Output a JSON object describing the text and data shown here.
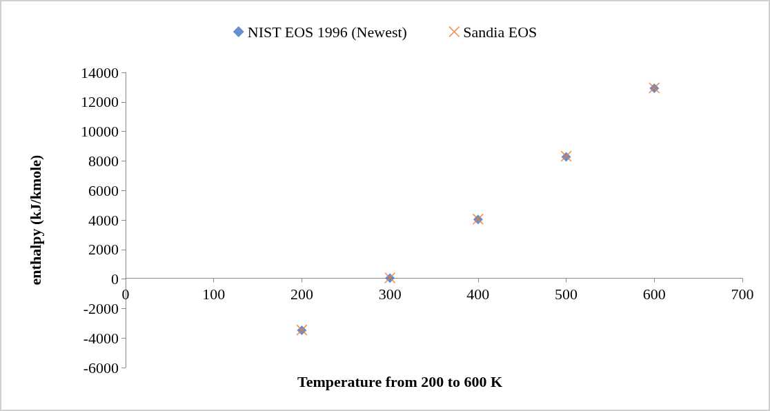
{
  "chart_data": {
    "type": "scatter",
    "xlabel": "Temperature from 200 to 600 K",
    "ylabel": "enthalpy (kJ/kmole)",
    "x": [
      200,
      300,
      400,
      500,
      600
    ],
    "series": [
      {
        "name": "NIST EOS 1996 (Newest)",
        "color": "#4472c4",
        "marker": "diamond",
        "values": [
          -3480,
          60,
          4030,
          8280,
          12930
        ]
      },
      {
        "name": "Sandia EOS",
        "color": "#ed7d31",
        "marker": "cross",
        "values": [
          -3450,
          80,
          4060,
          8320,
          12950
        ]
      }
    ],
    "xlim": [
      0,
      700
    ],
    "xticks": [
      0,
      100,
      200,
      300,
      400,
      500,
      600,
      700
    ],
    "ylim": [
      -6000,
      14000
    ],
    "yticks": [
      -6000,
      -4000,
      -2000,
      0,
      2000,
      4000,
      6000,
      8000,
      10000,
      12000,
      14000
    ],
    "grid": false,
    "legend": "top"
  }
}
